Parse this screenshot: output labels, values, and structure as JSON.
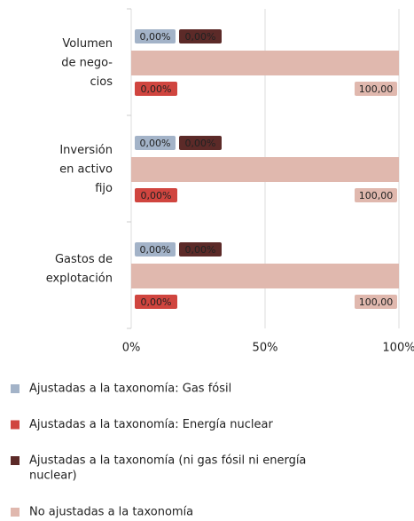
{
  "chart_data": {
    "type": "bar",
    "categories": [
      [
        "Volumen",
        "de nego-",
        "cios"
      ],
      [
        "Inversión",
        "en activo",
        "fijo"
      ],
      [
        "Gastos de",
        "explotación"
      ]
    ],
    "series": [
      {
        "name": "Ajustadas a la taxonomía: Gas fósil",
        "color": "#a3b3c8",
        "values": [
          0,
          0,
          0
        ],
        "value_labels": [
          "0,00%",
          "0,00%",
          "0,00%"
        ]
      },
      {
        "name": "Ajustadas a la taxonomía: Energía nuclear",
        "color": "#d0453f",
        "values": [
          0,
          0,
          0
        ],
        "value_labels": [
          "0,00%",
          "0,00%",
          "0,00%"
        ]
      },
      {
        "name": [
          "Ajustadas a la taxonomía (ni gas fósil ni energía",
          "nuclear)"
        ],
        "color": "#5c2a28",
        "values": [
          0,
          0,
          0
        ],
        "value_labels": [
          "0,00%",
          "0,00%",
          "0,00%"
        ]
      },
      {
        "name": "No ajustadas a la taxonomía",
        "color": "#e0b8ae",
        "values": [
          100,
          100,
          100
        ],
        "value_labels": [
          "100,00",
          "100,00",
          "100,00"
        ]
      }
    ],
    "xlim": [
      0,
      100
    ],
    "xticks": [
      {
        "value": 0,
        "label": "0%"
      },
      {
        "value": 50,
        "label": "50%"
      },
      {
        "value": 100,
        "label": "100%"
      }
    ],
    "grid": true,
    "legend": "bottom"
  }
}
